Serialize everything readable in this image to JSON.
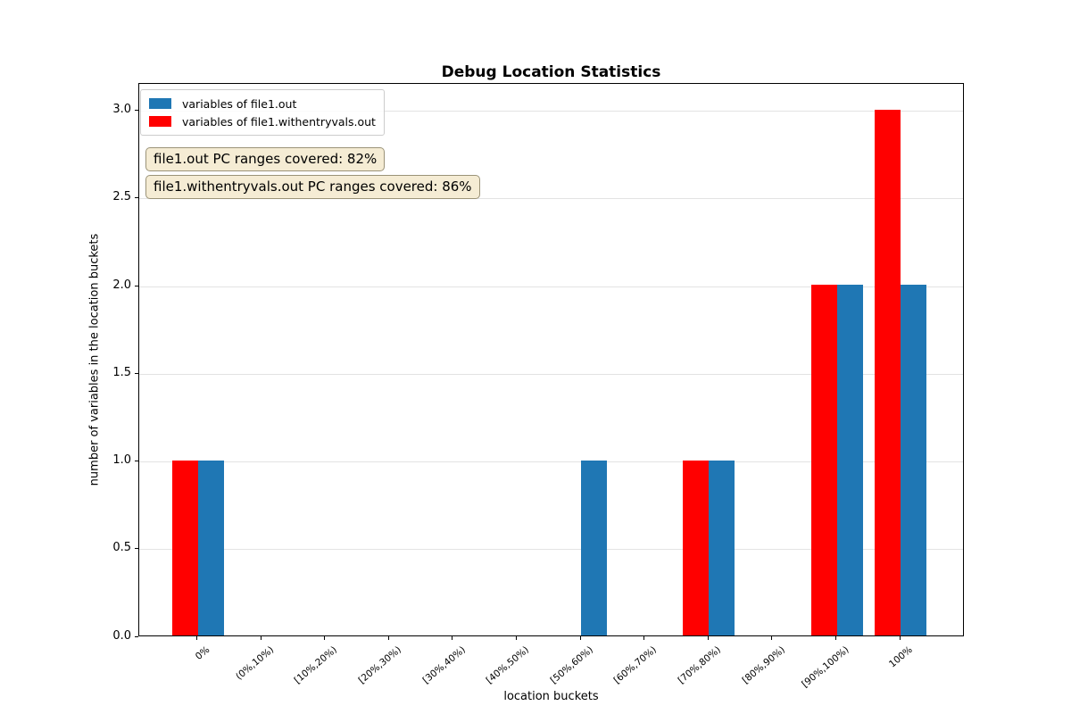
{
  "title": "Debug Location Statistics",
  "annotations": [
    {
      "text": "file1.out PC ranges covered: 82%"
    },
    {
      "text": "file1.withentryvals.out PC ranges covered: 86%"
    }
  ],
  "colors": {
    "series_blue": "#1f77b4",
    "series_red": "#ff0000",
    "annotation_bg": "#f5ecd4",
    "annotation_border": "#9b9378",
    "grid": "#e3e3e3"
  },
  "chart_data": {
    "type": "bar",
    "title": "Debug Location Statistics",
    "xlabel": "location buckets",
    "ylabel": "number of variables in the location buckets",
    "categories": [
      "0%",
      "(0%,10%)",
      "[10%,20%)",
      "[20%,30%)",
      "[30%,40%)",
      "[40%,50%)",
      "[50%,60%)",
      "[60%,70%)",
      "[70%,80%)",
      "[80%,90%)",
      "[90%,100%)",
      "100%"
    ],
    "series": [
      {
        "name": "variables of file1.out",
        "color": "#1f77b4",
        "values": [
          1,
          0,
          0,
          0,
          0,
          0,
          1,
          0,
          1,
          0,
          2,
          2
        ]
      },
      {
        "name": "variables of file1.withentryvals.out",
        "color": "#ff0000",
        "values": [
          1,
          0,
          0,
          0,
          0,
          0,
          0,
          0,
          1,
          0,
          2,
          3
        ]
      }
    ],
    "ylim": [
      0,
      3.15
    ],
    "yticks": [
      0,
      0.5,
      1,
      1.5,
      2,
      2.5,
      3
    ],
    "ytick_labels": [
      "0.0",
      "0.5",
      "1.0",
      "1.5",
      "2.0",
      "2.5",
      "3.0"
    ],
    "grid": "horizontal",
    "legend_position": "upper left"
  }
}
